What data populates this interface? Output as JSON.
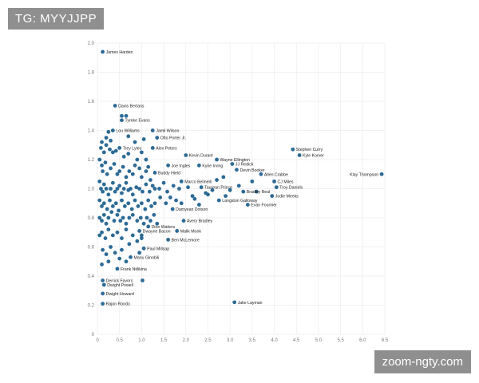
{
  "header_tag": "TG: MYYJJPP",
  "watermark": "zoom-ngty.com",
  "colors": {
    "point": "#2c6b96",
    "grid": "#ececec",
    "tag_bg": "#8f8f8f"
  },
  "chart_data": {
    "type": "scatter",
    "title": "",
    "xlabel": "",
    "ylabel": "",
    "xlim": [
      0,
      6.5
    ],
    "ylim": [
      0,
      2.0
    ],
    "x_ticks": [
      "0",
      "0.5",
      "1.0",
      "1.5",
      "2.0",
      "2.5",
      "3.0",
      "3.5",
      "4.0",
      "4.5",
      "5.0",
      "5.5",
      "6.0",
      "6.5"
    ],
    "y_ticks": [
      "0",
      "0.2",
      "0.4",
      "0.6",
      "0.8",
      "1.0",
      "1.2",
      "1.4",
      "1.6",
      "1.8",
      "2.0"
    ],
    "grid": true,
    "labeled_points": [
      {
        "name": "James Harden",
        "x": 0.12,
        "y": 1.94
      },
      {
        "name": "Davis Bertans",
        "x": 0.4,
        "y": 1.57
      },
      {
        "name": "Tyreke Evans",
        "x": 0.55,
        "y": 1.47
      },
      {
        "name": "Lou Williams",
        "x": 0.35,
        "y": 1.4
      },
      {
        "name": "Jamil Wilson",
        "x": 1.25,
        "y": 1.4
      },
      {
        "name": "Otto Porter Jr.",
        "x": 1.35,
        "y": 1.35
      },
      {
        "name": "Trey Lyles",
        "x": 0.5,
        "y": 1.28
      },
      {
        "name": "Alex Peters",
        "x": 1.25,
        "y": 1.28
      },
      {
        "name": "Kevin Durant",
        "x": 2.0,
        "y": 1.23
      },
      {
        "name": "Stephen Curry",
        "x": 4.42,
        "y": 1.27
      },
      {
        "name": "Kyle Korver",
        "x": 4.57,
        "y": 1.23
      },
      {
        "name": "Wayne Ellington",
        "x": 2.7,
        "y": 1.2
      },
      {
        "name": "Joe Ingles",
        "x": 1.6,
        "y": 1.16
      },
      {
        "name": "Kyrie Irving",
        "x": 2.3,
        "y": 1.16
      },
      {
        "name": "JJ Redick",
        "x": 3.05,
        "y": 1.17
      },
      {
        "name": "Buddy Hield",
        "x": 1.3,
        "y": 1.11
      },
      {
        "name": "Devin Booker",
        "x": 3.15,
        "y": 1.13
      },
      {
        "name": "Allen Crabbe",
        "x": 3.7,
        "y": 1.1
      },
      {
        "name": "Klay Thompson",
        "x": 6.43,
        "y": 1.1
      },
      {
        "name": "Marco Belinelli",
        "x": 1.9,
        "y": 1.05
      },
      {
        "name": "CJ Miles",
        "x": 4.0,
        "y": 1.05
      },
      {
        "name": "Taurean Prince",
        "x": 2.35,
        "y": 1.01
      },
      {
        "name": "Troy Daniels",
        "x": 4.05,
        "y": 1.01
      },
      {
        "name": "Bradley Beal",
        "x": 3.3,
        "y": 0.98
      },
      {
        "name": "Jodie Meeks",
        "x": 3.95,
        "y": 0.95
      },
      {
        "name": "Langston Galloway",
        "x": 2.75,
        "y": 0.92
      },
      {
        "name": "Evan Fournier",
        "x": 3.4,
        "y": 0.89
      },
      {
        "name": "Damyean Dotson",
        "x": 1.7,
        "y": 0.86
      },
      {
        "name": "Avery Bradley",
        "x": 1.95,
        "y": 0.78
      },
      {
        "name": "Dion Waiters",
        "x": 1.15,
        "y": 0.74
      },
      {
        "name": "Dwayne Bacon",
        "x": 0.95,
        "y": 0.71
      },
      {
        "name": "Malik Monk",
        "x": 1.8,
        "y": 0.71
      },
      {
        "name": "Ben McLemore",
        "x": 1.6,
        "y": 0.65
      },
      {
        "name": "Paul Millsap",
        "x": 1.05,
        "y": 0.59
      },
      {
        "name": "Manu Ginobili",
        "x": 0.75,
        "y": 0.53
      },
      {
        "name": "Frank Ntilikina",
        "x": 0.45,
        "y": 0.45
      },
      {
        "name": "Derrick Favors",
        "x": 0.12,
        "y": 0.37
      },
      {
        "name": "Dwight Powell",
        "x": 0.15,
        "y": 0.34
      },
      {
        "name": "Dwight Howard",
        "x": 0.12,
        "y": 0.28
      },
      {
        "name": "Rajon Rondo",
        "x": 0.12,
        "y": 0.21
      },
      {
        "name": "Jake Layman",
        "x": 3.1,
        "y": 0.22
      }
    ],
    "unlabeled_points": [
      [
        0.08,
        1.28
      ],
      [
        0.1,
        1.32
      ],
      [
        0.15,
        1.25
      ],
      [
        0.2,
        1.3
      ],
      [
        0.28,
        1.27
      ],
      [
        0.35,
        1.25
      ],
      [
        0.42,
        1.26
      ],
      [
        0.2,
        1.35
      ],
      [
        0.25,
        1.39
      ],
      [
        0.3,
        1.33
      ],
      [
        0.55,
        1.5
      ],
      [
        0.65,
        1.5
      ],
      [
        0.7,
        1.36
      ],
      [
        0.85,
        1.32
      ],
      [
        0.6,
        1.22
      ],
      [
        0.7,
        1.24
      ],
      [
        0.9,
        1.2
      ],
      [
        1.0,
        1.25
      ],
      [
        1.1,
        1.2
      ],
      [
        1.05,
        1.34
      ],
      [
        0.05,
        1.2
      ],
      [
        0.1,
        1.16
      ],
      [
        0.12,
        1.12
      ],
      [
        0.18,
        1.18
      ],
      [
        0.22,
        1.1
      ],
      [
        0.3,
        1.14
      ],
      [
        0.38,
        1.17
      ],
      [
        0.45,
        1.1
      ],
      [
        0.5,
        1.12
      ],
      [
        0.58,
        1.15
      ],
      [
        0.65,
        1.08
      ],
      [
        0.72,
        1.12
      ],
      [
        0.8,
        1.1
      ],
      [
        0.85,
        1.16
      ],
      [
        0.95,
        1.14
      ],
      [
        1.0,
        1.08
      ],
      [
        1.1,
        1.12
      ],
      [
        1.2,
        1.06
      ],
      [
        1.15,
        1.15
      ],
      [
        1.3,
        1.0
      ],
      [
        0.05,
        1.05
      ],
      [
        0.08,
        1.0
      ],
      [
        0.12,
        0.98
      ],
      [
        0.15,
        1.03
      ],
      [
        0.2,
        1.0
      ],
      [
        0.25,
        0.96
      ],
      [
        0.3,
        1.0
      ],
      [
        0.35,
        1.04
      ],
      [
        0.4,
        0.98
      ],
      [
        0.45,
        1.0
      ],
      [
        0.5,
        1.02
      ],
      [
        0.55,
        0.97
      ],
      [
        0.6,
        1.0
      ],
      [
        0.65,
        1.04
      ],
      [
        0.7,
        0.99
      ],
      [
        0.75,
        1.0
      ],
      [
        0.8,
        0.96
      ],
      [
        0.88,
        1.01
      ],
      [
        0.95,
        1.0
      ],
      [
        1.02,
        0.98
      ],
      [
        1.1,
        1.03
      ],
      [
        1.18,
        0.98
      ],
      [
        1.25,
        1.02
      ],
      [
        1.4,
        1.0
      ],
      [
        1.5,
        1.04
      ],
      [
        1.58,
        0.98
      ],
      [
        1.72,
        1.02
      ],
      [
        1.85,
        1.0
      ],
      [
        2.05,
        1.01
      ],
      [
        2.15,
        0.95
      ],
      [
        0.05,
        0.92
      ],
      [
        0.1,
        0.88
      ],
      [
        0.15,
        0.9
      ],
      [
        0.22,
        0.86
      ],
      [
        0.28,
        0.92
      ],
      [
        0.35,
        0.88
      ],
      [
        0.42,
        0.9
      ],
      [
        0.48,
        0.85
      ],
      [
        0.55,
        0.92
      ],
      [
        0.62,
        0.88
      ],
      [
        0.7,
        0.9
      ],
      [
        0.78,
        0.86
      ],
      [
        0.85,
        0.92
      ],
      [
        0.92,
        0.88
      ],
      [
        1.0,
        0.9
      ],
      [
        1.08,
        0.86
      ],
      [
        1.15,
        0.92
      ],
      [
        1.22,
        0.88
      ],
      [
        1.3,
        0.9
      ],
      [
        1.42,
        0.94
      ],
      [
        1.55,
        0.9
      ],
      [
        1.65,
        0.94
      ],
      [
        1.78,
        0.92
      ],
      [
        1.9,
        0.9
      ],
      [
        2.2,
        0.93
      ],
      [
        2.3,
        0.89
      ],
      [
        2.45,
        0.97
      ],
      [
        2.6,
        0.99
      ],
      [
        2.9,
        0.95
      ],
      [
        3.0,
        0.99
      ],
      [
        0.05,
        0.8
      ],
      [
        0.1,
        0.78
      ],
      [
        0.15,
        0.82
      ],
      [
        0.2,
        0.76
      ],
      [
        0.25,
        0.8
      ],
      [
        0.32,
        0.84
      ],
      [
        0.38,
        0.78
      ],
      [
        0.45,
        0.82
      ],
      [
        0.52,
        0.78
      ],
      [
        0.58,
        0.8
      ],
      [
        0.65,
        0.76
      ],
      [
        0.72,
        0.8
      ],
      [
        0.8,
        0.82
      ],
      [
        0.9,
        0.78
      ],
      [
        0.98,
        0.8
      ],
      [
        1.05,
        0.76
      ],
      [
        1.12,
        0.8
      ],
      [
        1.2,
        0.78
      ],
      [
        1.28,
        0.82
      ],
      [
        1.35,
        0.76
      ],
      [
        0.05,
        0.68
      ],
      [
        0.1,
        0.7
      ],
      [
        0.18,
        0.66
      ],
      [
        0.25,
        0.72
      ],
      [
        0.35,
        0.68
      ],
      [
        0.45,
        0.7
      ],
      [
        0.55,
        0.66
      ],
      [
        0.65,
        0.72
      ],
      [
        0.72,
        0.62
      ],
      [
        0.8,
        0.68
      ],
      [
        0.9,
        0.64
      ],
      [
        1.0,
        0.66
      ],
      [
        0.12,
        0.58
      ],
      [
        0.2,
        0.55
      ],
      [
        0.3,
        0.6
      ],
      [
        0.4,
        0.56
      ],
      [
        0.55,
        0.58
      ],
      [
        0.65,
        0.5
      ],
      [
        0.95,
        0.56
      ],
      [
        1.0,
        0.68
      ],
      [
        0.1,
        0.48
      ],
      [
        0.25,
        0.5
      ],
      [
        0.5,
        0.52
      ],
      [
        1.02,
        0.37
      ],
      [
        2.5,
        0.96
      ],
      [
        2.7,
        1.06
      ],
      [
        2.85,
        1.08
      ],
      [
        3.2,
        1.02
      ],
      [
        3.5,
        1.05
      ],
      [
        3.6,
        0.98
      ]
    ]
  }
}
